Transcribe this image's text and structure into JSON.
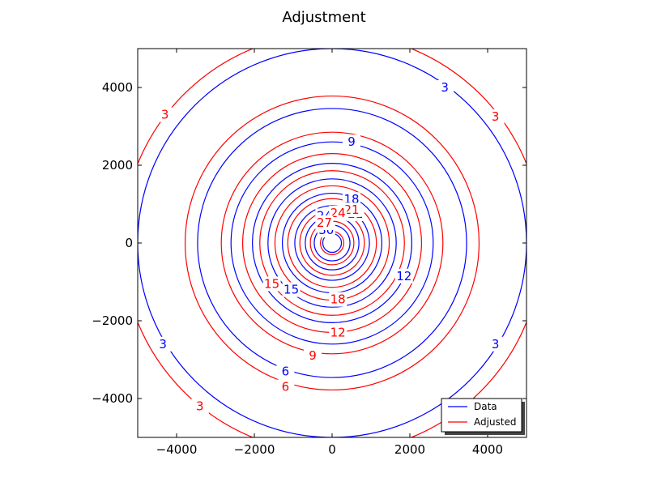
{
  "chart_data": {
    "type": "contour",
    "title": "Adjustment",
    "xlabel": "",
    "ylabel": "",
    "xlim": [
      -5000,
      5000
    ],
    "ylim": [
      -5000,
      5000
    ],
    "xticks": [
      -4000,
      -2000,
      0,
      2000,
      4000
    ],
    "yticks": [
      -4000,
      -2000,
      0,
      2000,
      4000
    ],
    "xtick_labels": [
      "−4000",
      "−2000",
      "0",
      "2000",
      "4000"
    ],
    "ytick_labels": [
      "−4000",
      "−2000",
      "0",
      "2000",
      "4000"
    ],
    "grid": false,
    "legend_position": "lower-right",
    "series": [
      {
        "name": "Data",
        "color": "#0000ff",
        "levels": [
          3,
          6,
          9,
          12,
          15,
          18,
          21,
          24,
          27,
          30
        ],
        "center": [
          0,
          0
        ],
        "radii": [
          5000,
          3460,
          2600,
          2050,
          1650,
          1280,
          960,
          690,
          460,
          240
        ],
        "labels": [
          {
            "text": "3",
            "x": 2900,
            "y": 4000
          },
          {
            "text": "3",
            "x": -4350,
            "y": -2600
          },
          {
            "text": "3",
            "x": 4200,
            "y": -2600
          },
          {
            "text": "6",
            "x": -1200,
            "y": -3300
          },
          {
            "text": "9",
            "x": 500,
            "y": 2600
          },
          {
            "text": "12",
            "x": 1850,
            "y": -850
          },
          {
            "text": "15",
            "x": -1050,
            "y": -1200
          },
          {
            "text": "18",
            "x": 500,
            "y": 1120
          },
          {
            "text": "21",
            "x": 600,
            "y": 750
          },
          {
            "text": "24",
            "x": -200,
            "y": 700
          },
          {
            "text": "30",
            "x": -150,
            "y": 330
          }
        ]
      },
      {
        "name": "Adjusted",
        "color": "#ff0000",
        "levels": [
          3,
          6,
          9,
          12,
          15,
          18,
          21,
          24,
          27,
          30
        ],
        "center": [
          0,
          0
        ],
        "radii": [
          5400,
          3780,
          2850,
          2300,
          1860,
          1470,
          1140,
          830,
          560,
          300
        ],
        "labels": [
          {
            "text": "3",
            "x": -4300,
            "y": 3300
          },
          {
            "text": "3",
            "x": 4200,
            "y": 3250
          },
          {
            "text": "3",
            "x": -3400,
            "y": -4200
          },
          {
            "text": "6",
            "x": -1200,
            "y": -3700
          },
          {
            "text": "9",
            "x": -500,
            "y": -2900
          },
          {
            "text": "12",
            "x": 150,
            "y": -2300
          },
          {
            "text": "15",
            "x": -1550,
            "y": -1050
          },
          {
            "text": "18",
            "x": 150,
            "y": -1450
          },
          {
            "text": "21",
            "x": 500,
            "y": 850
          },
          {
            "text": "24",
            "x": 150,
            "y": 770
          },
          {
            "text": "27",
            "x": -200,
            "y": 520
          }
        ]
      }
    ]
  }
}
